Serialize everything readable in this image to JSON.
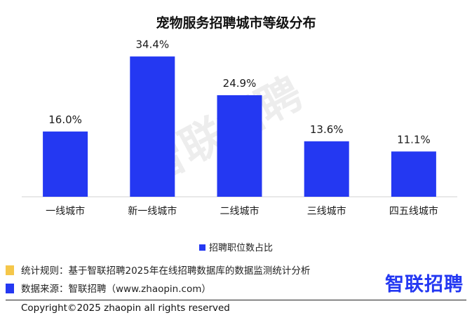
{
  "chart_data": {
    "type": "bar",
    "title": "宠物服务招聘城市等级分布",
    "categories": [
      "一线城市",
      "新一线城市",
      "二线城市",
      "三线城市",
      "四五线城市"
    ],
    "values": [
      16.0,
      34.4,
      24.9,
      13.6,
      11.1
    ],
    "data_labels": [
      "16.0%",
      "34.4%",
      "24.9%",
      "13.6%",
      "11.1%"
    ],
    "series": [
      {
        "name": "招聘职位数占比",
        "values": [
          16.0,
          34.4,
          24.9,
          13.6,
          11.1
        ]
      }
    ],
    "unit": "%",
    "ylim": [
      0,
      40
    ],
    "grid": false,
    "legend_position": "bottom",
    "bar_color": "#2438f2"
  },
  "notes": {
    "rule": "统计规则：基于智联招聘2025年在线招聘数据库的数据监测统计分析",
    "source": "数据来源：智联招聘（www.zhaopin.com）",
    "rule_marker_color": "#f5c74a",
    "source_marker_color": "#2438f2"
  },
  "logo": "智联招聘",
  "watermark": "智联招聘",
  "copyright": "Copyright©2025 zhaopin all rights reserved"
}
